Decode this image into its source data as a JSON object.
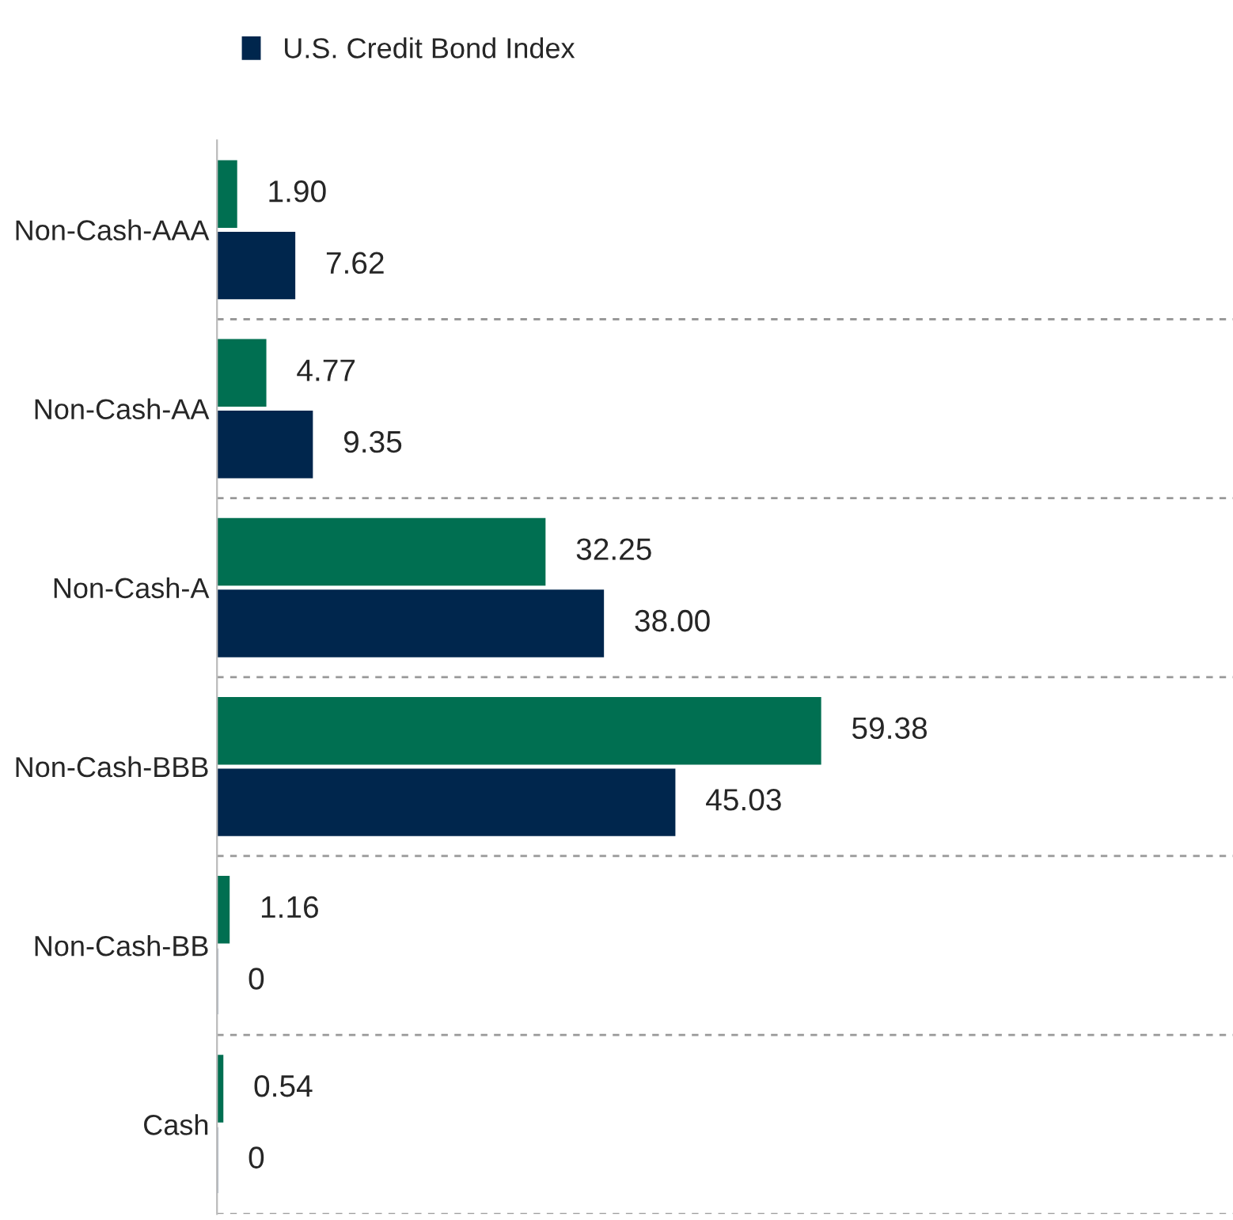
{
  "chart_data": {
    "type": "bar",
    "orientation": "horizontal",
    "categories": [
      "Non-Cash-AAA",
      "Non-Cash-AA",
      "Non-Cash-A",
      "Non-Cash-BBB",
      "Non-Cash-BB",
      "Cash"
    ],
    "series": [
      {
        "color": "#006f51",
        "values": [
          1.9,
          4.77,
          32.25,
          59.38,
          1.16,
          0.54
        ],
        "value_labels": [
          "1.90",
          "4.77",
          "32.25",
          "59.38",
          "1.16",
          "0.54"
        ]
      },
      {
        "name": "U.S. Credit Bond Index",
        "color": "#00264d",
        "values": [
          7.62,
          9.35,
          38.0,
          45.03,
          0,
          0
        ],
        "value_labels": [
          "7.62",
          "9.35",
          "38.00",
          "45.03",
          "0",
          "0"
        ]
      }
    ],
    "xlim": [
      0,
      100
    ],
    "tick_labels": "y",
    "grid": "y",
    "legend": "top left"
  }
}
